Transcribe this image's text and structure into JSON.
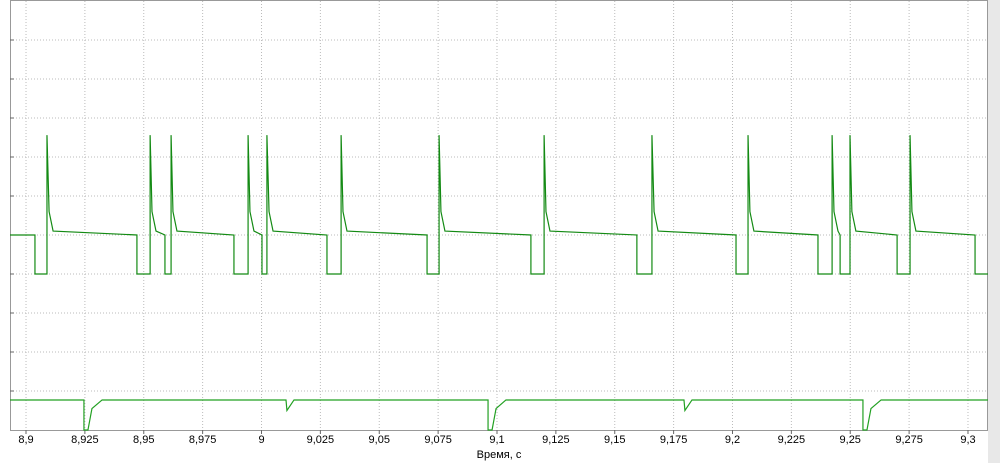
{
  "chart_data": {
    "type": "line",
    "xlabel": "Время, с",
    "xlim": [
      8.8932,
      9.3085
    ],
    "xticks": [
      {
        "value": 8.9,
        "label": "8,9"
      },
      {
        "value": 8.925,
        "label": "8,925"
      },
      {
        "value": 8.95,
        "label": "8,95"
      },
      {
        "value": 8.975,
        "label": "8,975"
      },
      9,
      {
        "value": 9.025,
        "label": "9,025"
      },
      {
        "value": 9.05,
        "label": "9,05"
      },
      {
        "value": 9.075,
        "label": "9,075"
      },
      {
        "value": 9.1,
        "label": "9,1"
      },
      {
        "value": 9.125,
        "label": "9,125"
      },
      {
        "value": 9.15,
        "label": "9,15"
      },
      {
        "value": 9.175,
        "label": "9,175"
      },
      {
        "value": 9.2,
        "label": "9,2"
      },
      {
        "value": 9.225,
        "label": "9,225"
      },
      {
        "value": 9.25,
        "label": "9,25"
      },
      {
        "value": 9.275,
        "label": "9,275"
      },
      {
        "value": 9.3,
        "label": "9,3"
      }
    ],
    "ylim": [
      0,
      11
    ],
    "yticks": [
      1,
      2,
      3,
      4,
      5,
      6,
      7,
      8,
      9,
      10
    ],
    "grid": true,
    "series": [
      {
        "color": "#138a13",
        "x": [
          8.8932,
          8.9038,
          8.9038,
          8.9089,
          8.9089,
          8.9098,
          8.9115,
          8.9471,
          8.9471,
          8.9527,
          8.9527,
          8.9535,
          8.9552,
          8.959,
          8.959,
          8.9616,
          8.9616,
          8.9624,
          8.9641,
          8.9883,
          8.9883,
          8.9943,
          8.9943,
          8.9951,
          8.9968,
          9.0002,
          9.0002,
          9.0023,
          9.0023,
          9.0032,
          9.0049,
          9.0278,
          9.0278,
          9.0338,
          9.0338,
          9.0346,
          9.0363,
          9.0703,
          9.0703,
          9.0754,
          9.0754,
          9.0762,
          9.0779,
          9.1144,
          9.1144,
          9.12,
          9.12,
          9.1208,
          9.1225,
          9.1594,
          9.1594,
          9.1658,
          9.1658,
          9.1667,
          9.1684,
          9.2015,
          9.2015,
          9.2066,
          9.2066,
          9.2074,
          9.2091,
          9.2363,
          9.2363,
          9.2423,
          9.2423,
          9.2431,
          9.2448,
          9.2457,
          9.2457,
          9.2499,
          9.2499,
          9.2507,
          9.2524,
          9.2699,
          9.2699,
          9.2754,
          9.2754,
          9.2762,
          9.2779,
          9.303,
          9.303,
          9.3085
        ],
        "values": [
          5,
          5,
          4,
          4,
          7.56,
          5.6,
          5.1,
          5,
          4,
          4,
          7.56,
          5.6,
          5.1,
          5,
          4,
          4,
          7.56,
          5.6,
          5.1,
          5,
          4,
          4,
          7.56,
          5.6,
          5.1,
          5,
          4,
          4,
          7.56,
          5.6,
          5.1,
          5,
          4,
          4,
          7.56,
          5.6,
          5.1,
          5,
          4,
          4,
          7.56,
          5.6,
          5.1,
          5,
          4,
          4,
          7.56,
          5.6,
          5.1,
          5,
          4,
          4,
          7.56,
          5.6,
          5.1,
          5,
          4,
          4,
          7.56,
          5.6,
          5.1,
          5,
          4,
          4,
          7.56,
          5.6,
          5.1,
          5,
          4,
          4,
          7.56,
          5.6,
          5.1,
          5,
          4,
          4,
          7.56,
          5.6,
          5.1,
          5,
          4,
          4
        ]
      },
      {
        "color": "#22a022",
        "x": [
          8.8932,
          8.9246,
          8.9246,
          8.9263,
          8.928,
          8.9323,
          9.0104,
          9.0108,
          9.0138,
          9.0962,
          9.0962,
          9.0979,
          9.0996,
          9.1038,
          9.1794,
          9.1798,
          9.1828,
          9.2554,
          9.2554,
          9.2571,
          9.2588,
          9.2631,
          9.3085
        ],
        "values": [
          0.77,
          0.77,
          0,
          0,
          0.55,
          0.77,
          0.77,
          0.5,
          0.77,
          0.77,
          0,
          0,
          0.55,
          0.77,
          0.77,
          0.5,
          0.77,
          0.77,
          0,
          0,
          0.55,
          0.77,
          0.77
        ]
      }
    ]
  }
}
